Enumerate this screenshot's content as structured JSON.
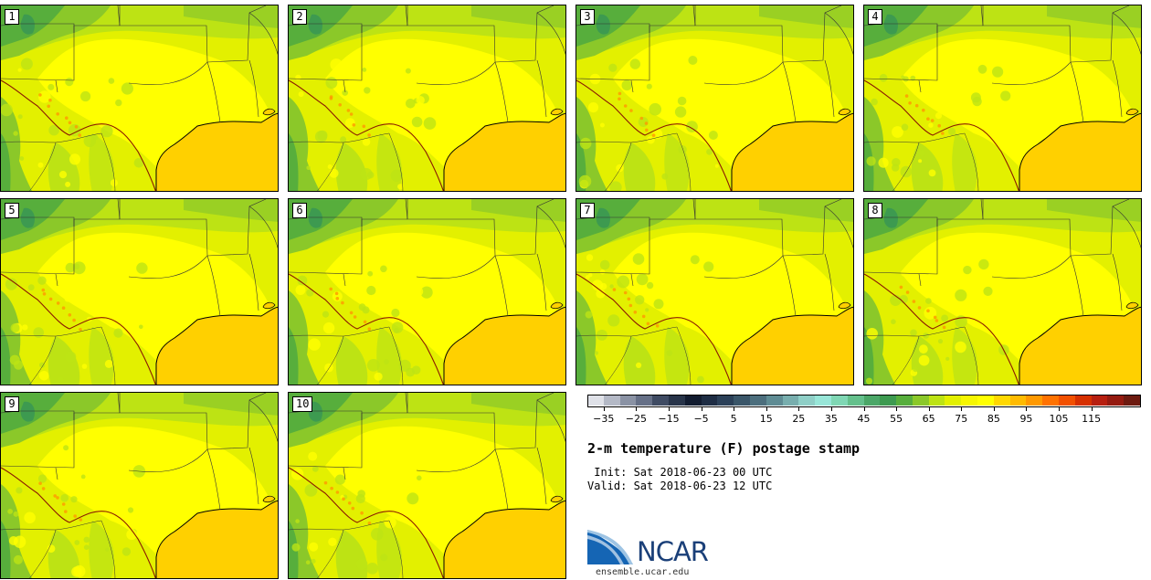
{
  "panels": [
    {
      "label": "1"
    },
    {
      "label": "2"
    },
    {
      "label": "3"
    },
    {
      "label": "4"
    },
    {
      "label": "5"
    },
    {
      "label": "6"
    },
    {
      "label": "7"
    },
    {
      "label": "8"
    },
    {
      "label": "9"
    },
    {
      "label": "10"
    }
  ],
  "colorbar": {
    "colors": [
      "#dfe1e8",
      "#b4b9c6",
      "#8a92a4",
      "#667087",
      "#3f4b63",
      "#283449",
      "#121c30",
      "#1e2d44",
      "#2b4058",
      "#3a5669",
      "#4c6e7d",
      "#5f8c94",
      "#78aeae",
      "#8fcfc7",
      "#98e6d8",
      "#7fd7b4",
      "#64c08c",
      "#4ba768",
      "#3d9a50",
      "#57ae3c",
      "#8bc829",
      "#bde314",
      "#e3f000",
      "#f6f600",
      "#ffff00",
      "#ffd800",
      "#ffbb00",
      "#ff9900",
      "#ff7200",
      "#f25000",
      "#d63000",
      "#b71f10",
      "#951a10",
      "#6d1a10"
    ],
    "ticks": [
      "−35",
      "−25",
      "−15",
      "−5",
      "5",
      "15",
      "25",
      "35",
      "45",
      "55",
      "65",
      "75",
      "85",
      "95",
      "105",
      "115"
    ]
  },
  "title": "2-m temperature (F) postage stamp",
  "init_line": " Init: Sat 2018-06-23 00 UTC",
  "valid_line": "Valid: Sat 2018-06-23 12 UTC",
  "logo": {
    "text": "NCAR",
    "icon": "ncar-swoosh-icon",
    "color": "#1a3f78"
  },
  "site": "ensemble.ucar.edu",
  "map_colors": {
    "land_base": "#e3f000",
    "warm": "#ffff00",
    "cool": "#bde314",
    "green": "#8bc829",
    "dark_green": "#57ae3c",
    "forest": "#3d9a50",
    "gulf": "#ffd000",
    "hot": "#ff9900"
  }
}
